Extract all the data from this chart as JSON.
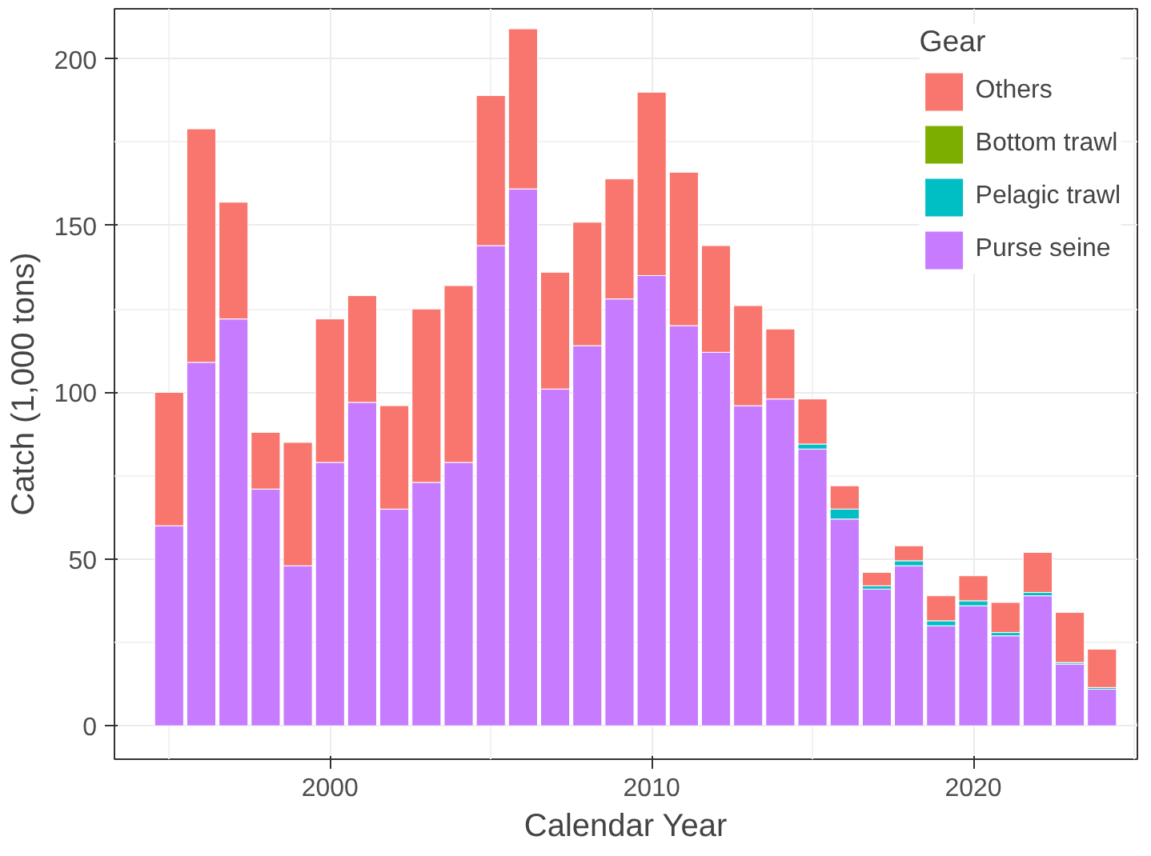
{
  "chart_data": {
    "type": "bar",
    "stacked": true,
    "xlabel": "Calendar Year",
    "ylabel": "Catch (1,000 tons)",
    "legend_title": "Gear",
    "legend": "top right",
    "grid": true,
    "x": [
      1995,
      1996,
      1997,
      1998,
      1999,
      2000,
      2001,
      2002,
      2003,
      2004,
      2005,
      2006,
      2007,
      2008,
      2009,
      2010,
      2011,
      2012,
      2013,
      2014,
      2015,
      2016,
      2017,
      2018,
      2019,
      2020,
      2021,
      2022,
      2023,
      2024
    ],
    "xlim": [
      1993.3,
      2025.1
    ],
    "xticks": [
      2000,
      2010,
      2020
    ],
    "ylim": [
      -10,
      215
    ],
    "yticks": [
      0,
      50,
      100,
      150,
      200
    ],
    "series": [
      {
        "name": "Purse seine",
        "color": "#c77cff",
        "values": [
          60,
          109,
          122,
          71,
          48,
          79,
          97,
          65,
          73,
          79,
          144,
          161,
          101,
          114,
          128,
          135,
          120,
          112,
          96,
          98,
          83,
          62,
          41,
          48,
          30,
          36,
          27,
          39,
          18.5,
          11
        ]
      },
      {
        "name": "Pelagic trawl",
        "color": "#00bfc4",
        "values": [
          0,
          0,
          0,
          0,
          0,
          0,
          0,
          0,
          0,
          0,
          0,
          0,
          0,
          0,
          0,
          0,
          0,
          0,
          0,
          0,
          1.5,
          3,
          1,
          1.5,
          1.5,
          1.5,
          1,
          1,
          0.5,
          0.5
        ]
      },
      {
        "name": "Bottom trawl",
        "color": "#7cae00",
        "values": [
          0,
          0,
          0,
          0,
          0,
          0,
          0,
          0,
          0,
          0,
          0,
          0,
          0,
          0,
          0,
          0,
          0,
          0,
          0,
          0,
          0,
          0,
          0,
          0,
          0,
          0,
          0,
          0,
          0,
          0
        ]
      },
      {
        "name": "Others",
        "color": "#f8766d",
        "values": [
          40,
          70,
          35,
          17,
          37,
          43,
          32,
          31,
          52,
          53,
          45,
          48,
          35,
          37,
          36,
          55,
          46,
          32,
          30,
          21,
          13.5,
          7,
          4,
          4.5,
          7.5,
          7.5,
          9,
          12,
          15,
          11.5
        ]
      }
    ]
  }
}
